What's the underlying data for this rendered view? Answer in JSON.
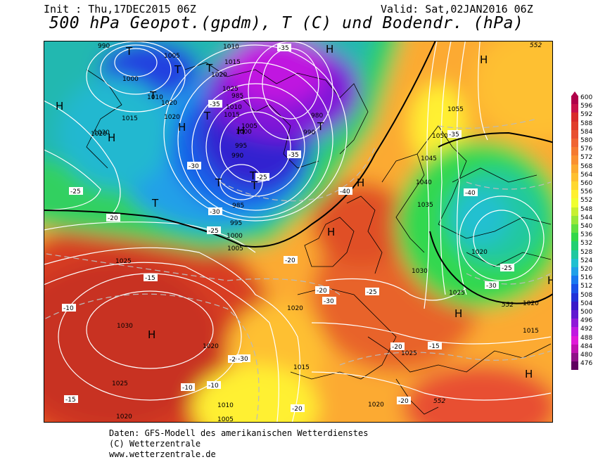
{
  "header": {
    "init": "Init : Thu,17DEC2015 06Z",
    "valid": "Valid: Sat,02JAN2016 06Z",
    "title": "500 hPa Geopot.(gpdm), T (C) und Bodendr. (hPa)"
  },
  "footer": {
    "line1": "Daten: GFS-Modell des amerikanischen Wetterdienstes",
    "line2": "(C) Wetterzentrale",
    "line3": "www.wetterzentrale.de"
  },
  "legend": {
    "values": [
      "600",
      "596",
      "592",
      "588",
      "584",
      "580",
      "576",
      "572",
      "568",
      "564",
      "560",
      "556",
      "552",
      "548",
      "544",
      "540",
      "536",
      "532",
      "528",
      "524",
      "520",
      "516",
      "512",
      "508",
      "504",
      "500",
      "496",
      "492",
      "488",
      "484",
      "480",
      "476"
    ],
    "colors": [
      "#b0004a",
      "#c8104a",
      "#d82a2a",
      "#e03c2a",
      "#e85030",
      "#f06432",
      "#f57a30",
      "#fa9030",
      "#fcaa30",
      "#fec030",
      "#ffd830",
      "#fff030",
      "#f0ff30",
      "#c8f030",
      "#98e838",
      "#60e040",
      "#30d848",
      "#20d070",
      "#20c8a0",
      "#20c0d0",
      "#20a0e8",
      "#1878f0",
      "#1850e8",
      "#2030d8",
      "#3818c8",
      "#6018d0",
      "#9018d8",
      "#c018e0",
      "#e018d8",
      "#c010b0",
      "#901088",
      "#600060"
    ]
  },
  "pressure_labels": [
    "990",
    "1005",
    "1010",
    "1015",
    "1020",
    "1025",
    "1000",
    "1010",
    "1015",
    "1020",
    "1030",
    "1020",
    "985",
    "980",
    "995",
    "990",
    "1000",
    "1005",
    "1015",
    "1010",
    "1055",
    "1050",
    "1045",
    "1040",
    "1035",
    "1030",
    "1025",
    "1020",
    "1015",
    "1020",
    "1025",
    "1030",
    "1025",
    "1020",
    "1010",
    "1005",
    "1020",
    "1015",
    "1020",
    "1025",
    "995",
    "1000",
    "1005",
    "985",
    "990",
    "1020",
    "1020"
  ],
  "temp_labels": [
    "-35",
    "-30",
    "-25",
    "-20",
    "-15",
    "-10",
    "-20",
    "-25",
    "-30",
    "-35",
    "-40",
    "-35",
    "-40",
    "-35",
    "-30",
    "-25",
    "-20",
    "-15",
    "-10",
    "-20",
    "-25",
    "-30",
    "-20",
    "-10",
    "-15",
    "-20",
    "-20",
    "-30",
    "-25"
  ],
  "contour_labels": [
    "552",
    "552",
    "552"
  ],
  "centers": [
    "T",
    "T",
    "T",
    "T",
    "T",
    "T",
    "T",
    "T",
    "T",
    "T",
    "H",
    "H",
    "H",
    "H",
    "H",
    "H",
    "H",
    "H",
    "H",
    "H",
    "H",
    "H"
  ]
}
